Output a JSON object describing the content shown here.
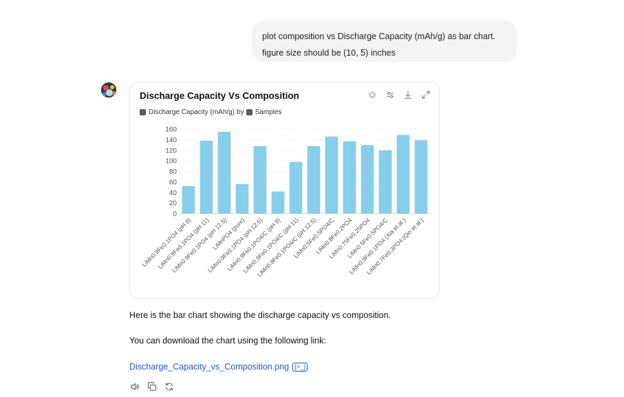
{
  "user_message": {
    "line1": "plot composition vs Discharge Capacity (mAh/g) as bar chart.",
    "line2": "figure size should be (10, 5) inches"
  },
  "chart_card": {
    "title": "Discharge Capacity Vs Composition",
    "subtitle_y": "Discharge Capacity (mAh/g)",
    "subtitle_by": "by",
    "subtitle_x": "Samples",
    "tool_icons": [
      "sparkle-icon",
      "sliders-icon",
      "download-icon",
      "expand-icon"
    ]
  },
  "chart_data": {
    "type": "bar",
    "title": "Discharge Capacity Vs Composition",
    "xlabel": "",
    "ylabel": "",
    "ylim": [
      0,
      160
    ],
    "yticks": [
      0,
      20,
      40,
      60,
      80,
      100,
      120,
      140,
      160
    ],
    "grid": true,
    "color": "#87ceeb",
    "categories": [
      "LiMn0.9Fe0.1PO4 (pH 9)",
      "LiMn0.9Fe0.1PO4 (pH 11)",
      "LiMn0.9Fe0.1PO4 (pH 12.5)",
      "LiMnPO4 (pure)",
      "LiMn0.9Fe0.1PO4 (pH 12.5)",
      "LiMn0.9Fe0.1PO4/C (pH 9)",
      "LiMn0.9Fe0.1PO4/C (pH 11)",
      "LiMn0.9Fe0.1PO4/C (pH 12.5)",
      "LiMn0.5Fe0.5PO4/C",
      "LiMn0.8Fe0.2PO4",
      "LiMn0.75Fe0.25PO4",
      "LiMn0.5Fe0.5PO4/C",
      "LiMn0.9Fe0.1PO4 (Xia et al.)",
      "LiMn0.7Fe0.3PO4 (Qin et al.)"
    ],
    "values": [
      52,
      138,
      155,
      56,
      128,
      42,
      98,
      128,
      146,
      137,
      130,
      120,
      149,
      139
    ]
  },
  "response": {
    "text1": "Here is the bar chart showing the discharge capacity vs composition.",
    "text2": "You can download the chart using the following link:",
    "link": "Discharge_Capacity_vs_Composition.png",
    "link_chip": "[>_]"
  },
  "actions": [
    "read-aloud-icon",
    "copy-icon",
    "regenerate-icon"
  ]
}
